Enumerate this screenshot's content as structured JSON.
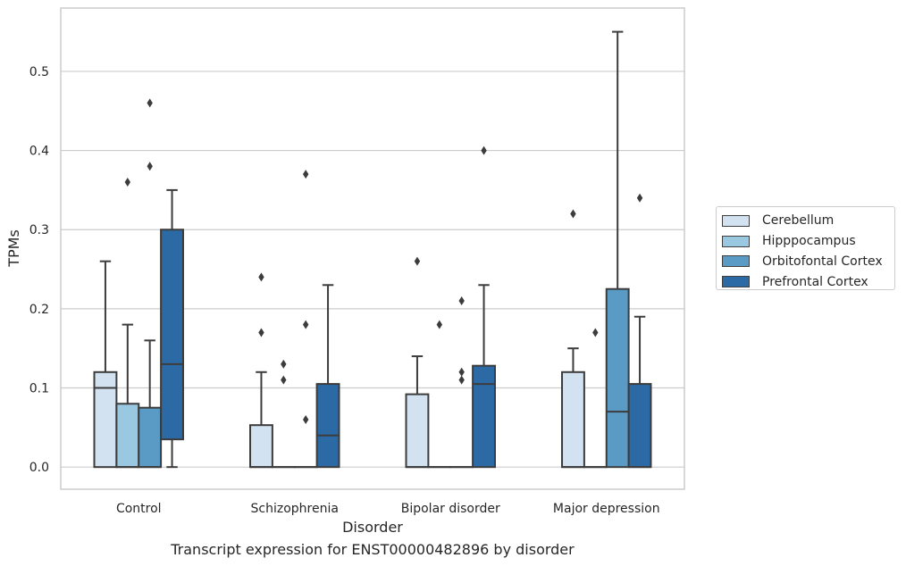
{
  "chart_data": {
    "type": "box",
    "xlabel": "Disorder",
    "ylabel": "TPMs",
    "caption": "Transcript expression for ENST00000482896 by disorder",
    "categories": [
      "Control",
      "Schizophrenia",
      "Bipolar disorder",
      "Major depression"
    ],
    "ylim": [
      -0.028,
      0.58
    ],
    "yticks": [
      0.0,
      0.1,
      0.2,
      0.3,
      0.4,
      0.5
    ],
    "ytick_labels": [
      "0.0",
      "0.1",
      "0.2",
      "0.3",
      "0.4",
      "0.5"
    ],
    "grid": "horizontal",
    "legend_position": "right",
    "series": [
      {
        "name": "Cerebellum",
        "color": "#d2e2f1",
        "boxes": [
          {
            "q1": 0.0,
            "median": 0.1,
            "q3": 0.12,
            "whislo": 0.0,
            "whishi": 0.26,
            "fliers": []
          },
          {
            "q1": 0.0,
            "median": 0.0,
            "q3": 0.053,
            "whislo": 0.0,
            "whishi": 0.12,
            "fliers": [
              0.17,
              0.24
            ]
          },
          {
            "q1": 0.0,
            "median": 0.0,
            "q3": 0.092,
            "whislo": 0.0,
            "whishi": 0.14,
            "fliers": [
              0.26
            ]
          },
          {
            "q1": 0.0,
            "median": 0.0,
            "q3": 0.12,
            "whislo": 0.0,
            "whishi": 0.15,
            "fliers": [
              0.32
            ]
          }
        ]
      },
      {
        "name": "Hipppocampus",
        "color": "#9ac8e0",
        "boxes": [
          {
            "q1": 0.0,
            "median": 0.0,
            "q3": 0.08,
            "whislo": 0.0,
            "whishi": 0.18,
            "fliers": [
              0.36
            ]
          },
          {
            "q1": 0.0,
            "median": 0.0,
            "q3": 0.0,
            "whislo": 0.0,
            "whishi": 0.0,
            "fliers": [
              0.11,
              0.13
            ]
          },
          {
            "q1": 0.0,
            "median": 0.0,
            "q3": 0.0,
            "whislo": 0.0,
            "whishi": 0.0,
            "fliers": [
              0.18
            ]
          },
          {
            "q1": 0.0,
            "median": 0.0,
            "q3": 0.0,
            "whislo": 0.0,
            "whishi": 0.0,
            "fliers": [
              0.17
            ]
          }
        ]
      },
      {
        "name": "Orbitofontal Cortex",
        "color": "#5a9bc6",
        "boxes": [
          {
            "q1": 0.0,
            "median": 0.0,
            "q3": 0.075,
            "whislo": 0.0,
            "whishi": 0.16,
            "fliers": [
              0.38,
              0.46
            ]
          },
          {
            "q1": 0.0,
            "median": 0.0,
            "q3": 0.0,
            "whislo": 0.0,
            "whishi": 0.0,
            "fliers": [
              0.06,
              0.18,
              0.37
            ]
          },
          {
            "q1": 0.0,
            "median": 0.0,
            "q3": 0.0,
            "whislo": 0.0,
            "whishi": 0.0,
            "fliers": [
              0.11,
              0.12,
              0.21
            ]
          },
          {
            "q1": 0.0,
            "median": 0.07,
            "q3": 0.225,
            "whislo": 0.0,
            "whishi": 0.55,
            "fliers": []
          }
        ]
      },
      {
        "name": "Prefrontal Cortex",
        "color": "#2c6aa6",
        "boxes": [
          {
            "q1": 0.035,
            "median": 0.13,
            "q3": 0.3,
            "whislo": 0.0,
            "whishi": 0.35,
            "fliers": []
          },
          {
            "q1": 0.0,
            "median": 0.04,
            "q3": 0.105,
            "whislo": 0.0,
            "whishi": 0.23,
            "fliers": []
          },
          {
            "q1": 0.0,
            "median": 0.105,
            "q3": 0.128,
            "whislo": 0.0,
            "whishi": 0.23,
            "fliers": [
              0.4
            ]
          },
          {
            "q1": 0.0,
            "median": 0.0,
            "q3": 0.105,
            "whislo": 0.0,
            "whishi": 0.19,
            "fliers": [
              0.34
            ]
          }
        ]
      }
    ]
  }
}
